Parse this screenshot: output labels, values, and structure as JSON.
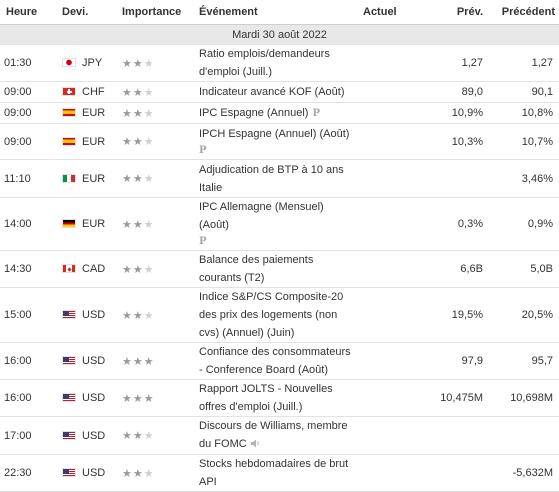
{
  "headers": {
    "time": "Heure",
    "currency": "Devi.",
    "importance": "Importance",
    "event": "Événement",
    "actual": "Actuel",
    "forecast": "Prév.",
    "previous": "Précédent"
  },
  "date_header": "Mardi 30 août 2022",
  "star_glyph": "★",
  "preliminary_mark": "P",
  "colors": {
    "star_on": "#9a9a9a",
    "star_off": "#cfcfcf",
    "date_bar": "#e8e8e8"
  },
  "rows": [
    {
      "time": "01:30",
      "flag": "jp",
      "currency": "JPY",
      "importance": 2,
      "event": "Ratio emplois/demandeurs d'emploi (Juill.)",
      "actual": "",
      "forecast": "1,27",
      "previous": "1,27"
    },
    {
      "time": "09:00",
      "flag": "ch",
      "currency": "CHF",
      "importance": 2,
      "event": "Indicateur avancé KOF (Août)",
      "actual": "",
      "forecast": "89,0",
      "previous": "90,1"
    },
    {
      "time": "09:00",
      "flag": "es",
      "currency": "EUR",
      "importance": 2,
      "event": "IPC Espagne (Annuel)",
      "marker": "inline",
      "actual": "",
      "forecast": "10,9%",
      "previous": "10,8%"
    },
    {
      "time": "09:00",
      "flag": "es",
      "currency": "EUR",
      "importance": 2,
      "event": "IPCH Espagne (Annuel) (Août)",
      "marker": "block",
      "actual": "",
      "forecast": "10,3%",
      "previous": "10,7%"
    },
    {
      "time": "11:10",
      "flag": "it",
      "currency": "EUR",
      "importance": 2,
      "event": "Adjudication de BTP à 10 ans Italie",
      "actual": "",
      "forecast": "",
      "previous": "3,46%"
    },
    {
      "time": "14:00",
      "flag": "de",
      "currency": "EUR",
      "importance": 2,
      "event": "IPC Allemagne (Mensuel) (Août)",
      "marker": "block",
      "actual": "",
      "forecast": "0,3%",
      "previous": "0,9%"
    },
    {
      "time": "14:30",
      "flag": "ca",
      "currency": "CAD",
      "importance": 2,
      "event": "Balance des paiements courants (T2)",
      "actual": "",
      "forecast": "6,6B",
      "previous": "5,0B"
    },
    {
      "time": "15:00",
      "flag": "us",
      "currency": "USD",
      "importance": 2,
      "event": "Indice S&P/CS Composite-20 des prix des logements (non cvs) (Annuel) (Juin)",
      "actual": "",
      "forecast": "19,5%",
      "previous": "20,5%"
    },
    {
      "time": "16:00",
      "flag": "us",
      "currency": "USD",
      "importance": 3,
      "event": "Confiance des consommateurs - Conference Board (Août)",
      "actual": "",
      "forecast": "97,9",
      "previous": "95,7"
    },
    {
      "time": "16:00",
      "flag": "us",
      "currency": "USD",
      "importance": 3,
      "event": "Rapport JOLTS - Nouvelles offres d'emploi (Juill.)",
      "actual": "",
      "forecast": "10,475M",
      "previous": "10,698M"
    },
    {
      "time": "17:00",
      "flag": "us",
      "currency": "USD",
      "importance": 2,
      "event": "Discours de Williams, membre du FOMC",
      "speech": true,
      "actual": "",
      "forecast": "",
      "previous": ""
    },
    {
      "time": "22:30",
      "flag": "us",
      "currency": "USD",
      "importance": 2,
      "event": "Stocks hebdomadaires de brut API",
      "actual": "",
      "forecast": "",
      "previous": "-5,632M"
    }
  ]
}
